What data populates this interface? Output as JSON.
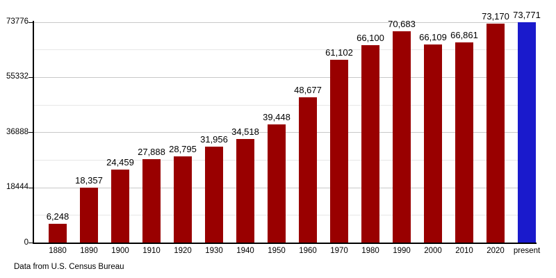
{
  "chart_data": {
    "type": "bar",
    "title": "",
    "xlabel": "",
    "ylabel": "",
    "categories": [
      "1880",
      "1890",
      "1900",
      "1910",
      "1920",
      "1930",
      "1940",
      "1950",
      "1960",
      "1970",
      "1980",
      "1990",
      "2000",
      "2010",
      "2020",
      "present"
    ],
    "values": [
      6248,
      18357,
      24459,
      27888,
      28795,
      31956,
      34518,
      39448,
      48677,
      61102,
      66100,
      70683,
      66109,
      66861,
      73170,
      73771
    ],
    "value_labels": [
      "6,248",
      "18,357",
      "24,459",
      "27,888",
      "28,795",
      "31,956",
      "34,518",
      "39,448",
      "48,677",
      "61,102",
      "66,100",
      "70,683",
      "66,109",
      "66,861",
      "73,170",
      "73,771"
    ],
    "ylim": [
      0,
      73776
    ],
    "y_ticks": [
      {
        "value": 0,
        "label": "0"
      },
      {
        "value": 18444,
        "label": "18444"
      },
      {
        "value": 36888,
        "label": "36888"
      },
      {
        "value": 55332,
        "label": "55332"
      },
      {
        "value": 73776,
        "label": "73776"
      }
    ],
    "minor_gridlines": [
      9222,
      27666,
      46110,
      64554
    ],
    "grid": "horizontal",
    "legend": "none",
    "bar_color": "#990000",
    "highlight_color": "#1A1ACC",
    "highlight_index": 15,
    "footer": "Data from U.S. Census Bureau"
  },
  "colors": {
    "background": "#FFFFFF",
    "axis": "#000000",
    "major_gridline": "#C8C8C8",
    "minor_gridline": "#E7E7E7",
    "text": "#000000"
  }
}
